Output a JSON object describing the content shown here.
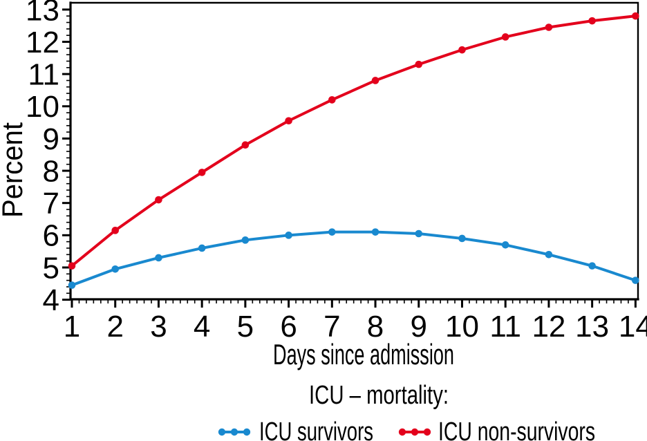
{
  "chart_data": {
    "type": "line",
    "title": "",
    "xlabel": "Days since admission",
    "ylabel": "Percent",
    "legend_title": "ICU – mortality:",
    "legend_position": "bottom",
    "grid": false,
    "marker": "circle",
    "x": [
      1,
      2,
      3,
      4,
      5,
      6,
      7,
      8,
      9,
      10,
      11,
      12,
      13,
      14
    ],
    "x_ticks": [
      1,
      2,
      3,
      4,
      5,
      6,
      7,
      8,
      9,
      10,
      11,
      12,
      13,
      14
    ],
    "y_ticks": [
      4,
      5,
      6,
      7,
      8,
      9,
      10,
      11,
      12,
      13
    ],
    "x_minor_ticks_per_interval": 5,
    "y_minor_ticks_per_interval": 4,
    "xlim": [
      0.95,
      14.05
    ],
    "ylim": [
      4,
      13.2
    ],
    "axis_color": "#000000",
    "series": [
      {
        "name": "ICU survivors",
        "color": "#1989cf",
        "values": [
          4.45,
          4.95,
          5.3,
          5.6,
          5.85,
          6.0,
          6.1,
          6.1,
          6.05,
          5.9,
          5.7,
          5.4,
          5.05,
          4.6
        ]
      },
      {
        "name": "ICU non-survivors",
        "color": "#e3001c",
        "values": [
          5.05,
          6.15,
          7.1,
          7.95,
          8.8,
          9.55,
          10.2,
          10.8,
          11.3,
          11.75,
          12.15,
          12.45,
          12.65,
          12.8
        ]
      }
    ]
  }
}
